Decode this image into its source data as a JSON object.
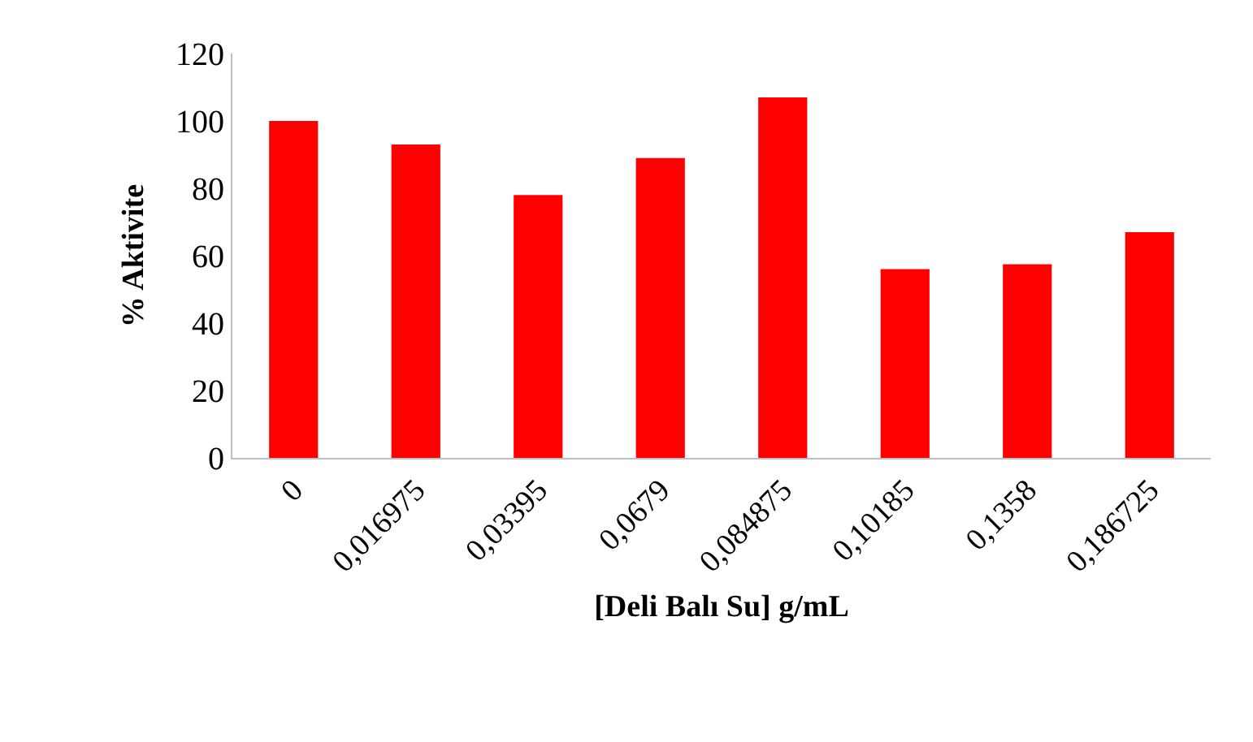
{
  "chart_data": {
    "type": "bar",
    "xlabel": "[Deli Balı Su] g/mL",
    "ylabel": "% Aktivite",
    "categories": [
      "0",
      "0,016975",
      "0,03395",
      "0,0679",
      "0,084875",
      "0,10185",
      "0,1358",
      "0,186725"
    ],
    "values": [
      100,
      93,
      78,
      89,
      107,
      56,
      57.5,
      67
    ],
    "color": "#ff0000",
    "ylim": [
      0,
      120
    ],
    "yticks": [
      0,
      20,
      40,
      60,
      80,
      100,
      120
    ],
    "grid": false,
    "legend": false
  }
}
